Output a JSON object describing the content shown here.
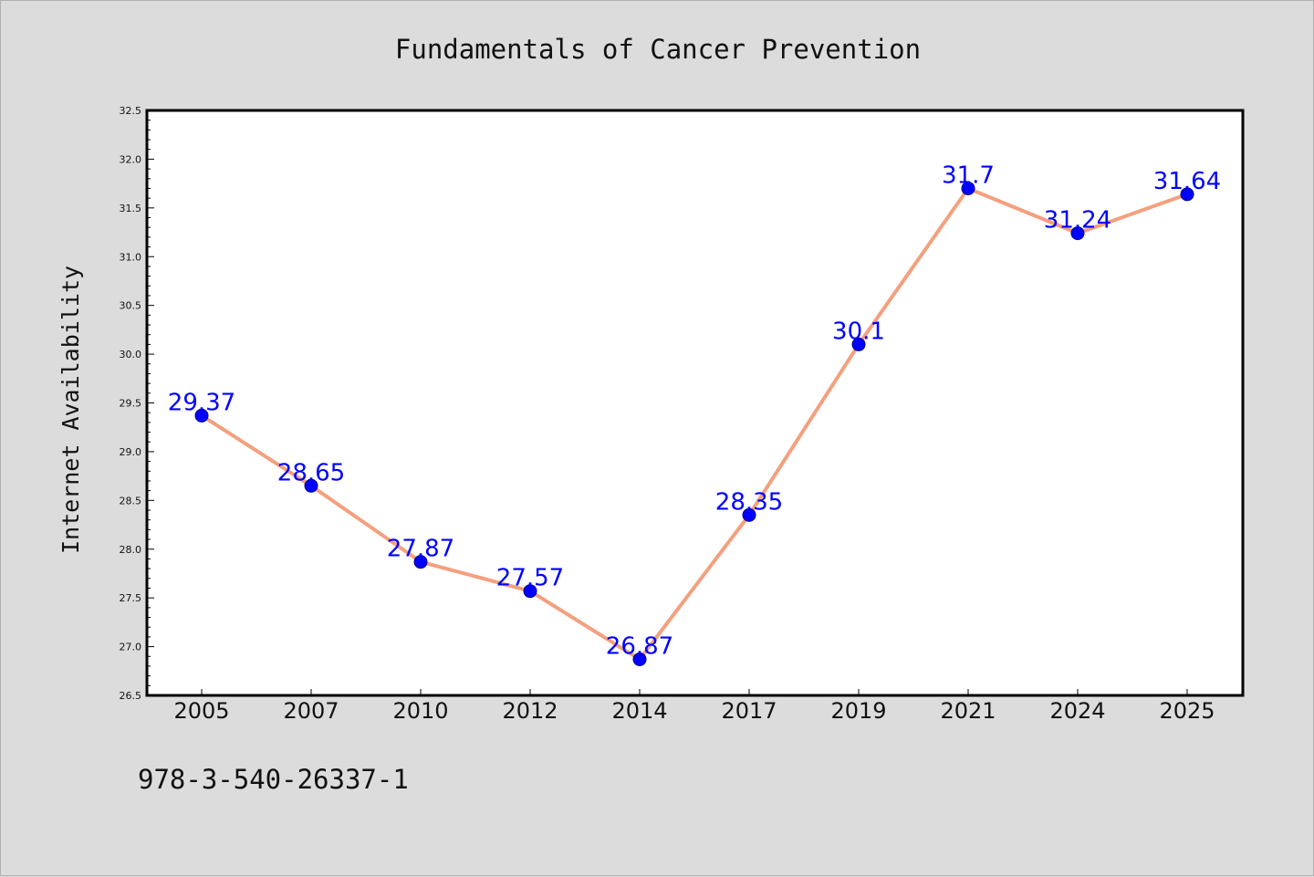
{
  "chart_data": {
    "type": "line",
    "title": "Fundamentals of Cancer Prevention",
    "xlabel": "",
    "ylabel": "Internet Availability",
    "categories": [
      "2005",
      "2007",
      "2010",
      "2012",
      "2014",
      "2017",
      "2019",
      "2021",
      "2024",
      "2025"
    ],
    "values": [
      29.37,
      28.65,
      27.87,
      27.57,
      26.87,
      28.35,
      30.1,
      31.7,
      31.24,
      31.64
    ],
    "data_labels": [
      "29.37",
      "28.65",
      "27.87",
      "27.57",
      "26.87",
      "28.35",
      "30.1",
      "31.7",
      "31.24",
      "31.64"
    ],
    "ylim": [
      26.5,
      32.5
    ],
    "yticks": [
      "26.5",
      "27.0",
      "27.5",
      "28.0",
      "28.5",
      "29.0",
      "29.5",
      "30.0",
      "30.5",
      "31.0",
      "31.5",
      "32.0",
      "32.5"
    ],
    "grid": false,
    "legend": "none",
    "colors": {
      "line": "#f4a07e",
      "marker": "#0000ff",
      "marker_edge": "#00008b",
      "labels": "#0000ff",
      "background": "#dcdcdc",
      "plot_area": "#ffffff"
    }
  },
  "footer": {
    "isbn": "978-3-540-26337-1"
  }
}
